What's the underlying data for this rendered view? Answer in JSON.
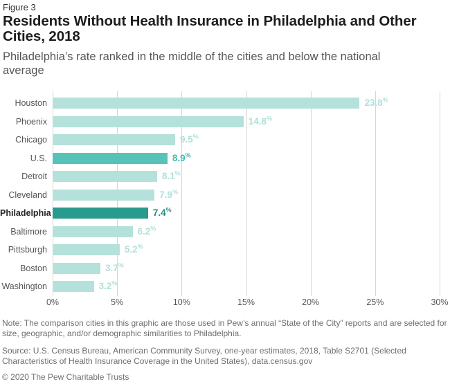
{
  "header": {
    "figure_label": "Figure 3",
    "title_lines": [
      "Residents Without Health Insurance in Philadelphia and Other",
      "Cities, 2018"
    ],
    "subtitle_lines": [
      "Philadelphia’s rate ranked in the middle of the cities and below the national",
      "average"
    ]
  },
  "footer": {
    "note": "Note: The comparison cities in this graphic are those used in Pew’s annual “State of the City” reports and are selected for size, geographic, and/or demographic similarities to Philadelphia.",
    "source": "Source: U.S. Census Bureau, American Community Survey, one-year estimates, 2018, Table S2701 (Selected Characteristics of Health Insurance Coverage in the United States), data.census.gov",
    "copyright": "© 2020 The Pew Charitable Trusts"
  },
  "chart_data": {
    "type": "bar",
    "orientation": "horizontal",
    "title": "Residents Without Health Insurance in Philadelphia and Other Cities, 2018",
    "subtitle": "Philadelphia’s rate ranked in the middle of the cities and below the national average",
    "xlabel": "",
    "ylabel": "",
    "xlim": [
      0,
      30
    ],
    "grid": "vertical",
    "value_suffix": "%",
    "categories": [
      "Houston",
      "Phoenix",
      "Chicago",
      "U.S.",
      "Detroit",
      "Cleveland",
      "Philadelphia",
      "Baltimore",
      "Pittsburgh",
      "Boston",
      "Washington"
    ],
    "values": [
      23.8,
      14.8,
      9.5,
      8.9,
      8.1,
      7.9,
      7.4,
      6.2,
      5.2,
      3.7,
      3.2
    ],
    "row_styles": [
      "light",
      "light",
      "light",
      "us",
      "light",
      "light",
      "phila",
      "light",
      "light",
      "light",
      "light"
    ],
    "bold_labels": [
      false,
      false,
      false,
      false,
      false,
      false,
      true,
      false,
      false,
      false,
      false
    ],
    "x_ticks": [
      {
        "label": "0%",
        "value": 0
      },
      {
        "label": "5%",
        "value": 5
      },
      {
        "label": "10%",
        "value": 10
      },
      {
        "label": "15%",
        "value": 15
      },
      {
        "label": "20%",
        "value": 20
      },
      {
        "label": "25%",
        "value": 25
      },
      {
        "label": "30%",
        "value": 30
      }
    ],
    "colors": {
      "bar_light": "#b4e1da",
      "bar_us": "#57c3b8",
      "bar_phila": "#299a8e",
      "value_light": "#b1e0d9",
      "value_us": "#45bcb0",
      "value_phila": "#1f8e84",
      "gridline": "#d5d5d5"
    }
  }
}
